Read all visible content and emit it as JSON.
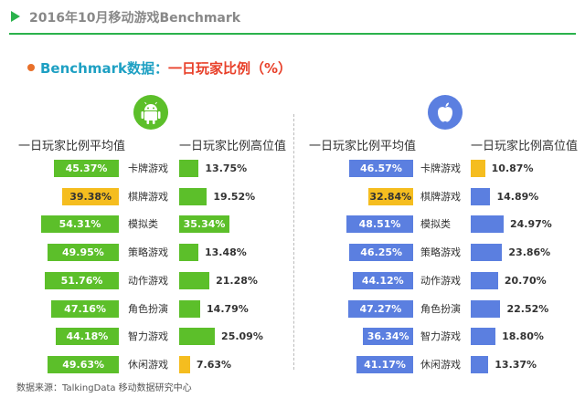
{
  "header": {
    "title": "2016年10月移动游戏Benchmark"
  },
  "subtitle": {
    "part1": "Benchmark数据：",
    "part2": "一日玩家比例（%）"
  },
  "footer": "数据来源：TalkingData 移动数据研究中心",
  "colors": {
    "green": "#5cbf2a",
    "yellow": "#f5bd1f",
    "blue": "#5b7fe0",
    "accent": "#2bb24c"
  },
  "chart_data": [
    {
      "type": "bar",
      "platform_icon": "android-icon",
      "categories": [
        "卡牌游戏",
        "棋牌游戏",
        "模拟类",
        "策略游戏",
        "动作游戏",
        "角色扮演",
        "智力游戏",
        "休闲游戏"
      ],
      "series": [
        {
          "name": "一日玩家比例平均值",
          "values": [
            45.37,
            39.38,
            54.31,
            49.95,
            51.76,
            47.16,
            44.18,
            49.63
          ],
          "labels": [
            "45.37%",
            "39.38%",
            "54.31%",
            "49.95%",
            "51.76%",
            "47.16%",
            "44.18%",
            "49.63%"
          ],
          "highlight_index": 1
        },
        {
          "name": "一日玩家比例高位值",
          "values": [
            13.75,
            19.52,
            35.34,
            13.48,
            21.28,
            14.79,
            25.09,
            7.63
          ],
          "labels": [
            "13.75%",
            "19.52%",
            "35.34%",
            "13.48%",
            "21.28%",
            "14.79%",
            "25.09%",
            "7.63%"
          ],
          "highlight_index": 7
        }
      ]
    },
    {
      "type": "bar",
      "platform_icon": "apple-icon",
      "categories": [
        "卡牌游戏",
        "棋牌游戏",
        "模拟类",
        "策略游戏",
        "动作游戏",
        "角色扮演",
        "智力游戏",
        "休闲游戏"
      ],
      "series": [
        {
          "name": "一日玩家比例平均值",
          "values": [
            46.57,
            32.84,
            48.51,
            46.25,
            44.12,
            47.27,
            36.34,
            41.17
          ],
          "labels": [
            "46.57%",
            "32.84%",
            "48.51%",
            "46.25%",
            "44.12%",
            "47.27%",
            "36.34%",
            "41.17%"
          ],
          "highlight_index": 1
        },
        {
          "name": "一日玩家比例高位值",
          "values": [
            10.87,
            14.89,
            24.97,
            23.86,
            20.7,
            22.52,
            18.8,
            13.37
          ],
          "labels": [
            "10.87%",
            "14.89%",
            "24.97%",
            "23.86%",
            "20.70%",
            "22.52%",
            "18.80%",
            "13.37%"
          ],
          "highlight_index": 0
        }
      ]
    }
  ]
}
